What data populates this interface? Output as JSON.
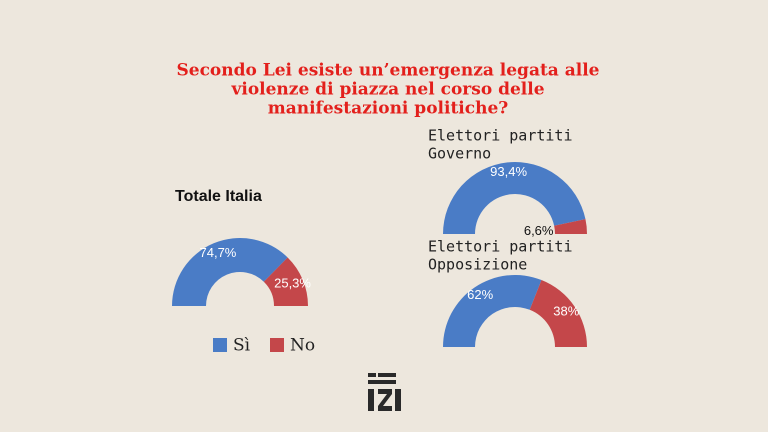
{
  "title": [
    "Secondo Lei esiste un’emergenza legata alle",
    "violenze di piazza nel corso delle",
    "manifestazioni politiche?"
  ],
  "legend": {
    "labels": [
      "Sì",
      "No"
    ],
    "colors": [
      "#4a7cc6",
      "#c4474a"
    ]
  },
  "chart_data": [
    {
      "type": "pie",
      "title": [
        "Totale Italia"
      ],
      "values": [
        74.7,
        25.3
      ],
      "value_labels": [
        "74,7%",
        "25,3%"
      ]
    },
    {
      "type": "pie",
      "title": [
        "Elettori partiti",
        "Governo"
      ],
      "values": [
        93.4,
        6.6
      ],
      "value_labels": [
        "93,4%",
        "6,6%"
      ]
    },
    {
      "type": "pie",
      "title": [
        "Elettori partiti",
        "Opposizione"
      ],
      "values": [
        62,
        38
      ],
      "value_labels": [
        "62%",
        "38%"
      ]
    }
  ]
}
